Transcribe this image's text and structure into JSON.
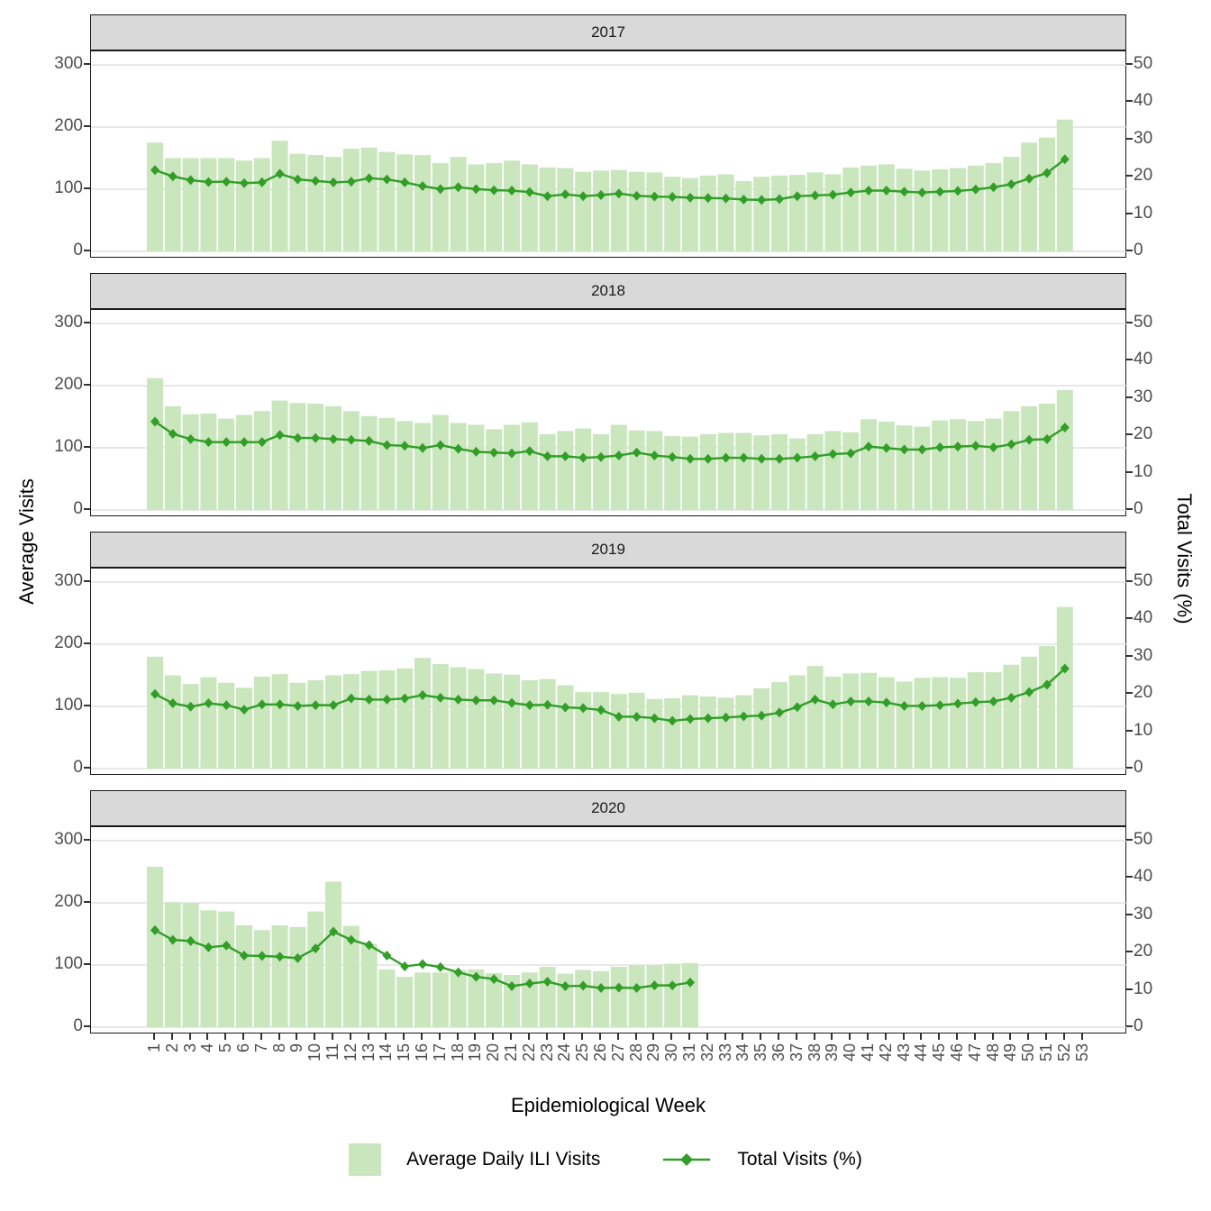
{
  "axes": {
    "left_title": "Average Visits",
    "right_title": "Total Visits (%)",
    "x_title": "Epidemiological Week",
    "left_ticks": [
      0,
      100,
      200,
      300
    ],
    "right_ticks": [
      0,
      10,
      20,
      30,
      40,
      50
    ],
    "x_ticks": [
      1,
      2,
      3,
      4,
      5,
      6,
      7,
      8,
      9,
      10,
      11,
      12,
      13,
      14,
      15,
      16,
      17,
      18,
      19,
      20,
      21,
      22,
      23,
      24,
      25,
      26,
      27,
      28,
      29,
      30,
      31,
      32,
      33,
      34,
      35,
      36,
      37,
      38,
      39,
      40,
      41,
      42,
      43,
      44,
      45,
      46,
      47,
      48,
      49,
      50,
      51,
      52,
      53
    ]
  },
  "legend": {
    "bar_label": "Average Daily ILI Visits",
    "line_label": "Total Visits (%)"
  },
  "colors": {
    "bar_fill": "#c9e6bd",
    "line": "#329e28",
    "strip_bg": "#d9d9d9",
    "grid": "#d9d9d9",
    "axis_text": "#4d4d4d",
    "panel_border": "#1a1a1a"
  },
  "chart_data": [
    {
      "type": "bar",
      "facet": "2017",
      "x": [
        1,
        2,
        3,
        4,
        5,
        6,
        7,
        8,
        9,
        10,
        11,
        12,
        13,
        14,
        15,
        16,
        17,
        18,
        19,
        20,
        21,
        22,
        23,
        24,
        25,
        26,
        27,
        28,
        29,
        30,
        31,
        32,
        33,
        34,
        35,
        36,
        37,
        38,
        39,
        40,
        41,
        42,
        43,
        44,
        45,
        46,
        47,
        48,
        49,
        50,
        51,
        52
      ],
      "bars": {
        "name": "Average Daily ILI Visits",
        "axis": "left",
        "ylim": [
          0,
          300
        ],
        "values": [
          175,
          150,
          150,
          150,
          150,
          146,
          150,
          178,
          157,
          155,
          152,
          165,
          167,
          160,
          156,
          155,
          142,
          152,
          140,
          142,
          146,
          140,
          135,
          134,
          128,
          130,
          131,
          128,
          127,
          120,
          118,
          122,
          124,
          113,
          120,
          122,
          123,
          127,
          124,
          135,
          138,
          140,
          133,
          130,
          132,
          134,
          138,
          142,
          152,
          175,
          183,
          212
        ]
      },
      "line": {
        "name": "Total Visits (%)",
        "axis": "right",
        "ylim": [
          0,
          50
        ],
        "values": [
          21.8,
          20.1,
          19.1,
          18.6,
          18.7,
          18.3,
          18.5,
          20.8,
          19.3,
          18.9,
          18.5,
          18.7,
          19.6,
          19.3,
          18.5,
          17.5,
          16.7,
          17.2,
          16.7,
          16.4,
          16.3,
          15.9,
          14.8,
          15.3,
          14.8,
          15.1,
          15.5,
          14.9,
          14.7,
          14.6,
          14.4,
          14.3,
          14.2,
          13.9,
          13.8,
          14.0,
          14.8,
          15.0,
          15.2,
          15.8,
          16.3,
          16.3,
          16.0,
          15.8,
          16.0,
          16.2,
          16.6,
          17.2,
          18.0,
          19.5,
          21.0,
          24.7
        ]
      }
    },
    {
      "type": "bar",
      "facet": "2018",
      "x": [
        1,
        2,
        3,
        4,
        5,
        6,
        7,
        8,
        9,
        10,
        11,
        12,
        13,
        14,
        15,
        16,
        17,
        18,
        19,
        20,
        21,
        22,
        23,
        24,
        25,
        26,
        27,
        28,
        29,
        30,
        31,
        32,
        33,
        34,
        35,
        36,
        37,
        38,
        39,
        40,
        41,
        42,
        43,
        44,
        45,
        46,
        47,
        48,
        49,
        50,
        51,
        52
      ],
      "bars": {
        "name": "Average Daily ILI Visits",
        "axis": "left",
        "ylim": [
          0,
          300
        ],
        "values": [
          212,
          167,
          154,
          155,
          147,
          153,
          159,
          176,
          172,
          171,
          167,
          159,
          151,
          148,
          143,
          140,
          153,
          140,
          137,
          130,
          137,
          141,
          122,
          127,
          131,
          122,
          137,
          128,
          127,
          119,
          118,
          122,
          124,
          124,
          120,
          122,
          115,
          122,
          127,
          125,
          146,
          142,
          136,
          134,
          144,
          146,
          143,
          147,
          159,
          167,
          171,
          193
        ]
      },
      "line": {
        "name": "Total Visits (%)",
        "axis": "right",
        "ylim": [
          0,
          50
        ],
        "values": [
          23.7,
          20.4,
          19.0,
          18.2,
          18.2,
          18.2,
          18.2,
          20.1,
          19.3,
          19.3,
          19.0,
          18.8,
          18.5,
          17.4,
          17.2,
          16.6,
          17.4,
          16.4,
          15.6,
          15.4,
          15.2,
          15.8,
          14.4,
          14.4,
          14.0,
          14.2,
          14.6,
          15.4,
          14.6,
          14.2,
          13.7,
          13.7,
          14.0,
          14.0,
          13.7,
          13.7,
          14.0,
          14.4,
          15.0,
          15.2,
          17.0,
          16.6,
          16.2,
          16.2,
          16.8,
          17.0,
          17.2,
          16.8,
          17.6,
          18.8,
          19.0,
          22.1
        ]
      }
    },
    {
      "type": "bar",
      "facet": "2019",
      "x": [
        1,
        2,
        3,
        4,
        5,
        6,
        7,
        8,
        9,
        10,
        11,
        12,
        13,
        14,
        15,
        16,
        17,
        18,
        19,
        20,
        21,
        22,
        23,
        24,
        25,
        26,
        27,
        28,
        29,
        30,
        31,
        32,
        33,
        34,
        35,
        36,
        37,
        38,
        39,
        40,
        41,
        42,
        43,
        44,
        45,
        46,
        47,
        48,
        49,
        50,
        51,
        52
      ],
      "bars": {
        "name": "Average Daily ILI Visits",
        "axis": "left",
        "ylim": [
          0,
          300
        ],
        "values": [
          180,
          150,
          136,
          147,
          138,
          130,
          148,
          152,
          138,
          142,
          150,
          152,
          157,
          158,
          161,
          178,
          168,
          163,
          160,
          153,
          151,
          142,
          144,
          134,
          123,
          123,
          120,
          122,
          112,
          113,
          118,
          116,
          114,
          118,
          129,
          139,
          150,
          165,
          148,
          153,
          154,
          147,
          140,
          146,
          147,
          146,
          155,
          155,
          167,
          180,
          197,
          260
        ]
      },
      "line": {
        "name": "Total Visits (%)",
        "axis": "right",
        "ylim": [
          0,
          50
        ],
        "values": [
          20.0,
          17.5,
          16.6,
          17.5,
          17.0,
          15.8,
          17.2,
          17.2,
          16.8,
          17.0,
          17.0,
          18.8,
          18.5,
          18.5,
          18.8,
          19.7,
          19.0,
          18.5,
          18.3,
          18.3,
          17.6,
          17.0,
          17.1,
          16.4,
          16.2,
          15.7,
          13.9,
          13.9,
          13.5,
          12.8,
          13.3,
          13.5,
          13.7,
          14.0,
          14.2,
          15.0,
          16.5,
          18.5,
          17.2,
          18.0,
          18.0,
          17.7,
          16.8,
          16.8,
          17.0,
          17.4,
          17.8,
          18.0,
          19.0,
          20.5,
          22.5,
          26.8
        ]
      }
    },
    {
      "type": "bar",
      "facet": "2020",
      "x": [
        1,
        2,
        3,
        4,
        5,
        6,
        7,
        8,
        9,
        10,
        11,
        12,
        13,
        14,
        15,
        16,
        17,
        18,
        19,
        20,
        21,
        22,
        23,
        24,
        25,
        26,
        27,
        28,
        29,
        30,
        31
      ],
      "bars": {
        "name": "Average Daily ILI Visits",
        "axis": "left",
        "ylim": [
          0,
          300
        ],
        "values": [
          258,
          201,
          199,
          188,
          186,
          164,
          156,
          164,
          161,
          186,
          234,
          163,
          134,
          93,
          81,
          88,
          88,
          92,
          93,
          87,
          84,
          88,
          97,
          86,
          92,
          90,
          97,
          99,
          99,
          102,
          103
        ]
      },
      "line": {
        "name": "Total Visits (%)",
        "axis": "right",
        "ylim": [
          0,
          50
        ],
        "values": [
          26.0,
          23.4,
          23.1,
          21.4,
          21.9,
          19.2,
          19.1,
          18.9,
          18.5,
          21.1,
          25.6,
          23.4,
          22.0,
          19.2,
          16.3,
          16.9,
          16.1,
          14.7,
          13.5,
          12.9,
          11.0,
          11.7,
          12.2,
          11.0,
          11.1,
          10.5,
          10.6,
          10.5,
          11.2,
          11.2,
          12.0
        ]
      }
    }
  ]
}
